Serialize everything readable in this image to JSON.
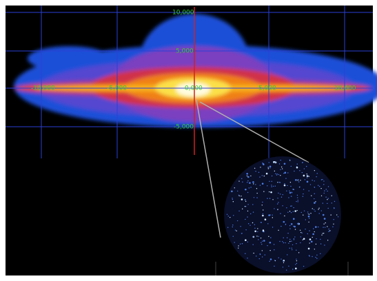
{
  "y_axis": {
    "labels": [
      "10,000",
      "5,000",
      "-5,000"
    ]
  },
  "x_axis": {
    "labels": [
      "-10,000",
      "-5,000",
      "5,000",
      "10,000"
    ]
  },
  "origin_label": "0,000"
}
